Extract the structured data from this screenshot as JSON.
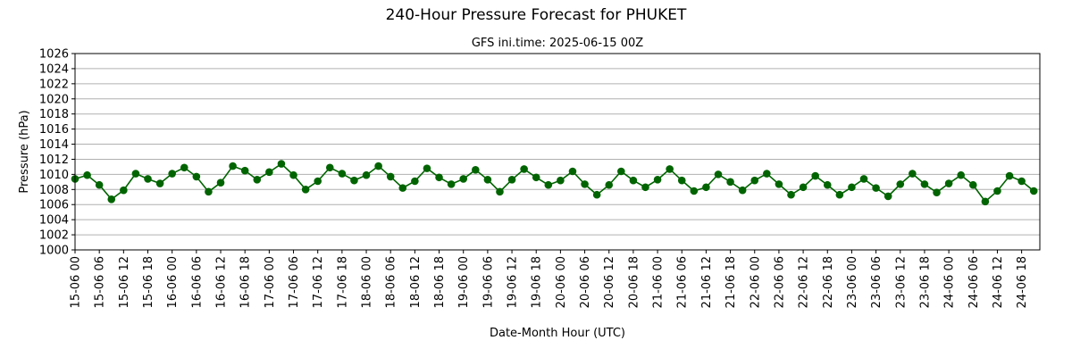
{
  "chart_data": {
    "type": "line",
    "title": "240-Hour Pressure Forecast for PHUKET",
    "subtitle": "GFS ini.time: 2025-06-15 00Z",
    "xlabel": "Date-Month Hour (UTC)",
    "ylabel": "Pressure (hPa)",
    "ylim": [
      1000,
      1026
    ],
    "yticks": [
      1000,
      1002,
      1004,
      1006,
      1008,
      1010,
      1012,
      1014,
      1016,
      1018,
      1020,
      1022,
      1024,
      1026
    ],
    "grid": "horizontal",
    "color": "#006400",
    "x": [
      "15-06 00",
      "15-06 03",
      "15-06 06",
      "15-06 09",
      "15-06 12",
      "15-06 15",
      "15-06 18",
      "15-06 21",
      "16-06 00",
      "16-06 03",
      "16-06 06",
      "16-06 09",
      "16-06 12",
      "16-06 15",
      "16-06 18",
      "16-06 21",
      "17-06 00",
      "17-06 03",
      "17-06 06",
      "17-06 09",
      "17-06 12",
      "17-06 15",
      "17-06 18",
      "17-06 21",
      "18-06 00",
      "18-06 03",
      "18-06 06",
      "18-06 09",
      "18-06 12",
      "18-06 15",
      "18-06 18",
      "18-06 21",
      "19-06 00",
      "19-06 03",
      "19-06 06",
      "19-06 09",
      "19-06 12",
      "19-06 15",
      "19-06 18",
      "19-06 21",
      "20-06 00",
      "20-06 03",
      "20-06 06",
      "20-06 09",
      "20-06 12",
      "20-06 15",
      "20-06 18",
      "20-06 21",
      "21-06 00",
      "21-06 03",
      "21-06 06",
      "21-06 09",
      "21-06 12",
      "21-06 15",
      "21-06 18",
      "21-06 21",
      "22-06 00",
      "22-06 03",
      "22-06 06",
      "22-06 09",
      "22-06 12",
      "22-06 15",
      "22-06 18",
      "22-06 21",
      "23-06 00",
      "23-06 03",
      "23-06 06",
      "23-06 09",
      "23-06 12",
      "23-06 15",
      "23-06 18",
      "23-06 21",
      "24-06 00",
      "24-06 03",
      "24-06 06",
      "24-06 09",
      "24-06 12",
      "24-06 15",
      "24-06 18",
      "24-06 21"
    ],
    "xticks": [
      "15-06 00",
      "15-06 06",
      "15-06 12",
      "15-06 18",
      "16-06 00",
      "16-06 06",
      "16-06 12",
      "16-06 18",
      "17-06 00",
      "17-06 06",
      "17-06 12",
      "17-06 18",
      "18-06 00",
      "18-06 06",
      "18-06 12",
      "18-06 18",
      "19-06 00",
      "19-06 06",
      "19-06 12",
      "19-06 18",
      "20-06 00",
      "20-06 06",
      "20-06 12",
      "20-06 18",
      "21-06 00",
      "21-06 06",
      "21-06 12",
      "21-06 18",
      "22-06 00",
      "22-06 06",
      "22-06 12",
      "22-06 18",
      "23-06 00",
      "23-06 06",
      "23-06 12",
      "23-06 18",
      "24-06 00",
      "24-06 06",
      "24-06 12",
      "24-06 18"
    ],
    "values": [
      1009.4,
      1009.9,
      1008.6,
      1006.7,
      1007.9,
      1010.1,
      1009.4,
      1008.8,
      1010.1,
      1010.9,
      1009.7,
      1007.7,
      1008.9,
      1011.1,
      1010.5,
      1009.3,
      1010.3,
      1011.4,
      1009.9,
      1008.0,
      1009.1,
      1010.9,
      1010.1,
      1009.2,
      1009.9,
      1011.1,
      1009.7,
      1008.2,
      1009.1,
      1010.8,
      1009.6,
      1008.7,
      1009.4,
      1010.6,
      1009.3,
      1007.7,
      1009.3,
      1010.7,
      1009.6,
      1008.6,
      1009.2,
      1010.4,
      1008.7,
      1007.3,
      1008.6,
      1010.4,
      1009.2,
      1008.3,
      1009.3,
      1010.7,
      1009.2,
      1007.8,
      1008.3,
      1010.0,
      1009.0,
      1007.9,
      1009.2,
      1010.1,
      1008.7,
      1007.3,
      1008.3,
      1009.8,
      1008.6,
      1007.3,
      1008.3,
      1009.4,
      1008.2,
      1007.1,
      1008.7,
      1010.1,
      1008.7,
      1007.6,
      1008.8,
      1009.9,
      1008.6,
      1006.4,
      1007.8,
      1009.8,
      1009.1,
      1007.8
    ]
  }
}
